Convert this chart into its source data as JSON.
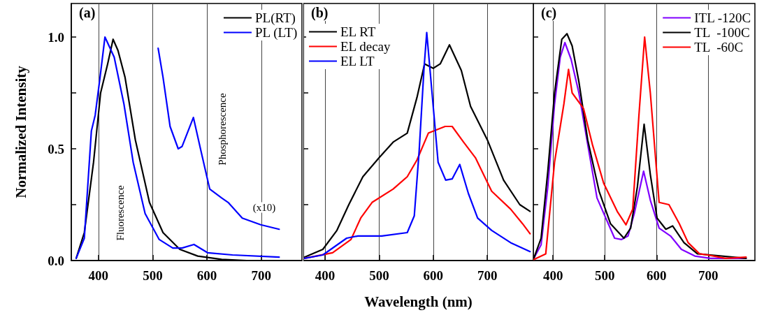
{
  "chart_data": [
    {
      "type": "line",
      "title": "(a)",
      "ylabel": "Normalized Intensity",
      "xlim": [
        350,
        775
      ],
      "xticks": [
        400,
        500,
        600,
        700
      ],
      "ylim": [
        0,
        1.15
      ],
      "yticks": [
        {
          "value": 0,
          "label": "0.0"
        },
        {
          "value": 0.25,
          "label": null
        },
        {
          "value": 0.5,
          "label": "0.5"
        },
        {
          "value": 0.75,
          "label": null
        },
        {
          "value": 1,
          "label": "1.0"
        }
      ],
      "grid": "x",
      "legend": "top right",
      "marker": "none",
      "line_style": "solid",
      "annotations": [
        "Fluorescence",
        "Phosphorescence",
        "(x10)"
      ],
      "series": [
        {
          "name": "PL(RT)",
          "color": "#000000",
          "x": [
            359,
            374,
            391,
            404,
            417,
            427,
            436,
            449,
            468,
            494,
            519,
            550,
            583,
            627,
            673
          ],
          "values": [
            0.01,
            0.125,
            0.44,
            0.75,
            0.88,
            0.99,
            0.94,
            0.82,
            0.54,
            0.26,
            0.125,
            0.05,
            0.02,
            0.005,
            0
          ]
        },
        {
          "name": "PL (LT)",
          "color": "#0000ff",
          "x": [
            359,
            374,
            387,
            394,
            403,
            412,
            429,
            447,
            464,
            486,
            512,
            537,
            554,
            576,
            601,
            647,
            733
          ],
          "values": [
            0.01,
            0.1,
            0.58,
            0.65,
            0.82,
            1.0,
            0.91,
            0.7,
            0.44,
            0.21,
            0.094,
            0.056,
            0.056,
            0.072,
            0.035,
            0.025,
            0.015
          ]
        },
        {
          "color": "#0000ff",
          "x": [
            510,
            519,
            532,
            547,
            554,
            575,
            588,
            605,
            627,
            639,
            665,
            699,
            733
          ],
          "values": [
            0.95,
            0.82,
            0.6,
            0.5,
            0.51,
            0.64,
            0.5,
            0.32,
            0.28,
            0.26,
            0.19,
            0.16,
            0.14
          ]
        }
      ]
    },
    {
      "type": "line",
      "title": "(b)",
      "xlabel": "Wavelength (nm)",
      "xlim": [
        360,
        785
      ],
      "xticks": [
        400,
        500,
        600,
        700
      ],
      "ylim": [
        0,
        1.15
      ],
      "yticks": [
        {
          "value": 0.25,
          "label": null
        },
        {
          "value": 0.5,
          "label": null
        },
        {
          "value": 0.75,
          "label": null
        },
        {
          "value": 1,
          "label": null
        }
      ],
      "tick_labels": "x",
      "grid": "x",
      "legend": "top left",
      "marker": "none",
      "line_style": "solid",
      "series": [
        {
          "name": "EL RT",
          "color": "#000000",
          "x": [
            362,
            396,
            422,
            444,
            470,
            500,
            526,
            552,
            570,
            584,
            600,
            613,
            630,
            652,
            669,
            700,
            730,
            760,
            779
          ],
          "values": [
            0.015,
            0.05,
            0.135,
            0.25,
            0.375,
            0.46,
            0.53,
            0.57,
            0.73,
            0.88,
            0.86,
            0.88,
            0.965,
            0.85,
            0.69,
            0.54,
            0.36,
            0.25,
            0.22
          ]
        },
        {
          "name": "EL decay",
          "color": "#ff0000",
          "x": [
            362,
            414,
            448,
            466,
            487,
            526,
            552,
            570,
            591,
            622,
            635,
            656,
            678,
            708,
            743,
            765,
            779
          ],
          "values": [
            0.01,
            0.035,
            0.094,
            0.19,
            0.26,
            0.32,
            0.375,
            0.45,
            0.57,
            0.6,
            0.6,
            0.53,
            0.46,
            0.31,
            0.23,
            0.165,
            0.12
          ]
        },
        {
          "name": "EL LT",
          "color": "#0000ff",
          "x": [
            362,
            396,
            440,
            461,
            505,
            552,
            565,
            574,
            583,
            588,
            596,
            609,
            623,
            635,
            649,
            665,
            682,
            708,
            743,
            779
          ],
          "values": [
            0.01,
            0.025,
            0.1,
            0.11,
            0.11,
            0.125,
            0.2,
            0.49,
            0.86,
            1.02,
            0.8,
            0.44,
            0.36,
            0.365,
            0.43,
            0.3,
            0.19,
            0.135,
            0.08,
            0.04
          ]
        }
      ]
    },
    {
      "type": "line",
      "title": "(c)",
      "xlim": [
        362,
        790
      ],
      "xticks": [
        400,
        500,
        600,
        700
      ],
      "ylim": [
        0,
        1.15
      ],
      "yticks": [
        {
          "value": 0.25,
          "label": null
        },
        {
          "value": 0.5,
          "label": null
        },
        {
          "value": 0.75,
          "label": null
        },
        {
          "value": 1,
          "label": null
        }
      ],
      "tick_labels": "x",
      "grid": "x",
      "legend": "top right",
      "marker": "none",
      "line_style": "solid",
      "series": [
        {
          "name": "ITL -120C",
          "color": "#8000ff",
          "x": [
            363,
            377,
            390,
            403,
            414,
            423,
            435,
            450,
            467,
            485,
            502,
            519,
            532,
            545,
            557,
            575,
            588,
            605,
            627,
            648,
            674,
            704,
            773
          ],
          "values": [
            0.01,
            0.07,
            0.33,
            0.7,
            0.91,
            0.975,
            0.9,
            0.75,
            0.52,
            0.28,
            0.19,
            0.1,
            0.094,
            0.11,
            0.21,
            0.4,
            0.27,
            0.145,
            0.11,
            0.05,
            0.02,
            0.01,
            0.01
          ]
        },
        {
          "name": "TL  -100C",
          "color": "#000000",
          "x": [
            363,
            377,
            390,
            403,
            417,
            427,
            437,
            450,
            467,
            489,
            511,
            537,
            550,
            563,
            576,
            588,
            601,
            618,
            631,
            653,
            679,
            704,
            773
          ],
          "values": [
            0.01,
            0.1,
            0.4,
            0.75,
            0.99,
            1.015,
            0.96,
            0.8,
            0.54,
            0.31,
            0.165,
            0.1,
            0.145,
            0.33,
            0.61,
            0.385,
            0.19,
            0.14,
            0.155,
            0.08,
            0.03,
            0.025,
            0.01
          ]
        },
        {
          "name": "TL  -60C",
          "color": "#ff0000",
          "x": [
            363,
            386,
            403,
            421,
            430,
            437,
            459,
            476,
            498,
            524,
            541,
            554,
            566,
            577,
            588,
            605,
            624,
            644,
            661,
            683,
            699,
            733,
            773
          ],
          "values": [
            0.005,
            0.03,
            0.44,
            0.7,
            0.855,
            0.75,
            0.68,
            0.52,
            0.345,
            0.22,
            0.16,
            0.23,
            0.65,
            1.0,
            0.75,
            0.26,
            0.25,
            0.165,
            0.08,
            0.03,
            0.025,
            0.01,
            0.015
          ]
        }
      ]
    }
  ]
}
